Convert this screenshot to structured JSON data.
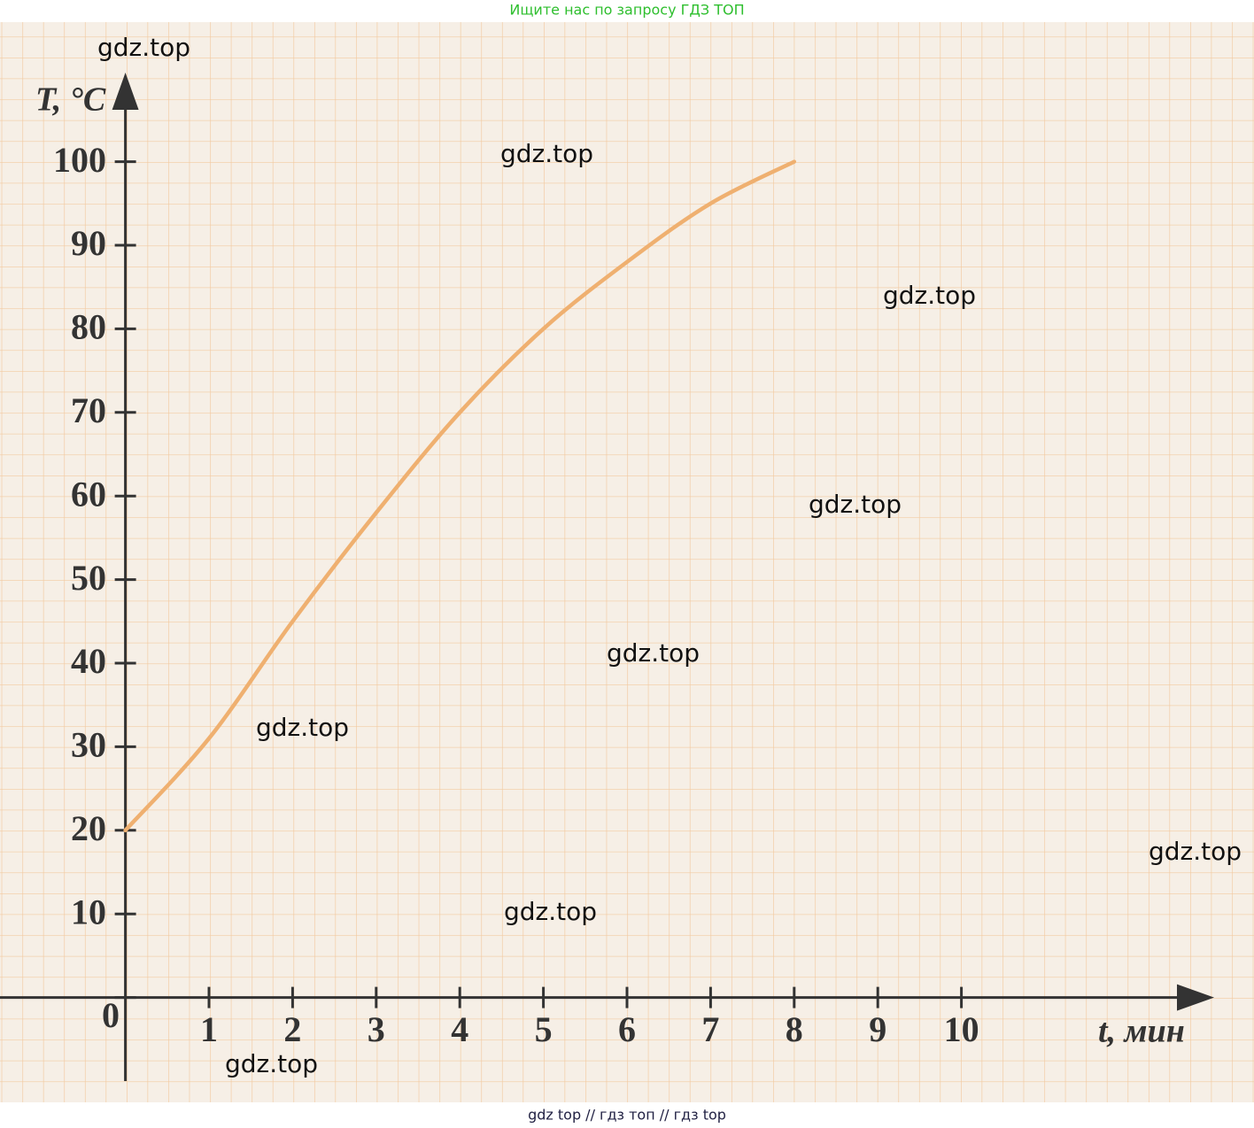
{
  "chart_data": {
    "type": "line",
    "x_label": "t, мин",
    "y_label": "T, °C",
    "x": [
      0,
      1,
      2,
      3,
      4,
      5,
      6,
      7,
      8
    ],
    "series": [
      {
        "color": "#efb070",
        "values": [
          20,
          31,
          45,
          58,
          70,
          80,
          88,
          95,
          100
        ]
      }
    ],
    "xlim": [
      -1.5,
      13.5
    ],
    "ylim": [
      -10,
      115
    ],
    "xticks": [
      1,
      2,
      3,
      4,
      5,
      6,
      7,
      8,
      9,
      10
    ],
    "yticks": [
      0,
      10,
      20,
      30,
      40,
      50,
      60,
      70,
      80,
      90,
      100
    ],
    "grid": true
  },
  "header": "Ищите нас по запросу ГДЗ ТОП",
  "footer": "gdz top  //  гдз топ  //  гдз top",
  "watermarks": [
    "gdz.top",
    "gdz.top",
    "gdz.top",
    "gdz.top",
    "gdz.top",
    "gdz.top",
    "gdz.top",
    "gdz.top",
    "gdz.top"
  ]
}
